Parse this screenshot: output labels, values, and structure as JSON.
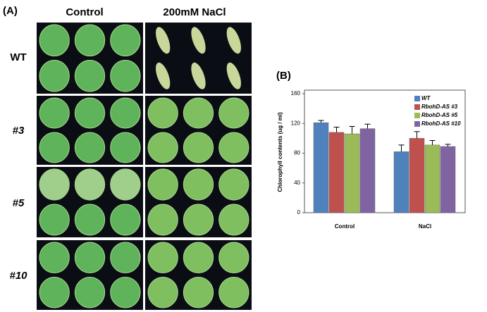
{
  "figure": {
    "panel_a_label": "(A)",
    "columns": [
      "Control",
      "200mM NaCl"
    ],
    "rows": [
      "WT",
      "#3",
      "#5",
      "#10"
    ],
    "panel_b_label": "(B)"
  },
  "chart_data": {
    "type": "bar",
    "y_label": "Chlorophyll contents (ug / ml)",
    "categories": [
      "Control",
      "NaCl"
    ],
    "series": [
      {
        "name": "WT",
        "color": "#4f81bd",
        "values": [
          121,
          82
        ],
        "errors": [
          3,
          9
        ]
      },
      {
        "name": "RbohD-AS #3",
        "color": "#c0504d",
        "values": [
          108,
          100
        ],
        "errors": [
          7,
          9
        ]
      },
      {
        "name": "RbohD-AS #5",
        "color": "#9bbb59",
        "values": [
          106,
          91
        ],
        "errors": [
          10,
          6
        ]
      },
      {
        "name": "RbohD-AS #10",
        "color": "#8064a2",
        "values": [
          113,
          89
        ],
        "errors": [
          6,
          3
        ]
      }
    ],
    "ylim": [
      0,
      160
    ],
    "yticks": [
      0,
      40,
      80,
      120,
      160
    ],
    "grid": false
  }
}
